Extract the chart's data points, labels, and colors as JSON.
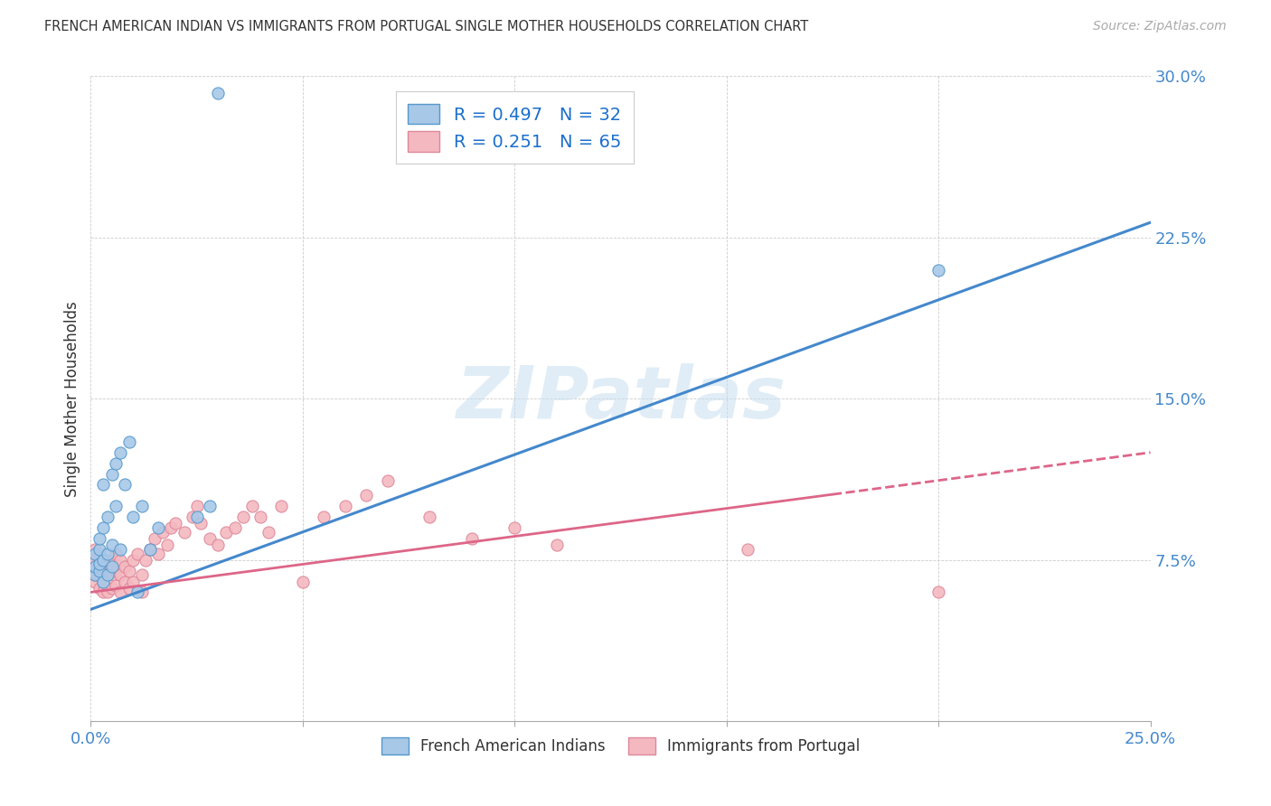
{
  "title": "FRENCH AMERICAN INDIAN VS IMMIGRANTS FROM PORTUGAL SINGLE MOTHER HOUSEHOLDS CORRELATION CHART",
  "source": "Source: ZipAtlas.com",
  "ylabel": "Single Mother Households",
  "xlim": [
    0.0,
    0.25
  ],
  "ylim": [
    0.0,
    0.3
  ],
  "xticks": [
    0.0,
    0.05,
    0.1,
    0.15,
    0.2,
    0.25
  ],
  "yticks": [
    0.0,
    0.075,
    0.15,
    0.225,
    0.3
  ],
  "blue_R": 0.497,
  "blue_N": 32,
  "pink_R": 0.251,
  "pink_N": 65,
  "blue_fill": "#a8c8e8",
  "blue_edge": "#5599cc",
  "pink_fill": "#f4b8c0",
  "pink_edge": "#dd8899",
  "blue_line_color": "#4488cc",
  "pink_line_color": "#dd6688",
  "watermark": "ZIPatlas",
  "legend_label_blue": "French American Indians",
  "legend_label_pink": "Immigrants from Portugal",
  "blue_scatter_x": [
    0.001,
    0.001,
    0.001,
    0.002,
    0.002,
    0.002,
    0.002,
    0.003,
    0.003,
    0.003,
    0.003,
    0.004,
    0.004,
    0.004,
    0.005,
    0.005,
    0.005,
    0.006,
    0.006,
    0.007,
    0.007,
    0.008,
    0.009,
    0.01,
    0.011,
    0.012,
    0.014,
    0.016,
    0.025,
    0.028,
    0.2,
    0.03
  ],
  "blue_scatter_y": [
    0.068,
    0.072,
    0.078,
    0.07,
    0.073,
    0.08,
    0.085,
    0.065,
    0.075,
    0.09,
    0.11,
    0.068,
    0.078,
    0.095,
    0.072,
    0.082,
    0.115,
    0.1,
    0.12,
    0.08,
    0.125,
    0.11,
    0.13,
    0.095,
    0.06,
    0.1,
    0.08,
    0.09,
    0.095,
    0.1,
    0.21,
    0.292
  ],
  "pink_scatter_x": [
    0.001,
    0.001,
    0.001,
    0.001,
    0.001,
    0.002,
    0.002,
    0.002,
    0.002,
    0.003,
    0.003,
    0.003,
    0.004,
    0.004,
    0.004,
    0.005,
    0.005,
    0.005,
    0.006,
    0.006,
    0.006,
    0.007,
    0.007,
    0.007,
    0.008,
    0.008,
    0.009,
    0.009,
    0.01,
    0.01,
    0.011,
    0.012,
    0.012,
    0.013,
    0.014,
    0.015,
    0.016,
    0.017,
    0.018,
    0.019,
    0.02,
    0.022,
    0.024,
    0.025,
    0.026,
    0.028,
    0.03,
    0.032,
    0.034,
    0.036,
    0.038,
    0.04,
    0.042,
    0.045,
    0.05,
    0.055,
    0.06,
    0.065,
    0.07,
    0.08,
    0.09,
    0.1,
    0.11,
    0.155,
    0.2
  ],
  "pink_scatter_y": [
    0.065,
    0.068,
    0.072,
    0.075,
    0.08,
    0.062,
    0.068,
    0.073,
    0.078,
    0.06,
    0.065,
    0.07,
    0.06,
    0.068,
    0.075,
    0.062,
    0.068,
    0.075,
    0.063,
    0.07,
    0.078,
    0.06,
    0.068,
    0.075,
    0.065,
    0.072,
    0.062,
    0.07,
    0.065,
    0.075,
    0.078,
    0.06,
    0.068,
    0.075,
    0.08,
    0.085,
    0.078,
    0.088,
    0.082,
    0.09,
    0.092,
    0.088,
    0.095,
    0.1,
    0.092,
    0.085,
    0.082,
    0.088,
    0.09,
    0.095,
    0.1,
    0.095,
    0.088,
    0.1,
    0.065,
    0.095,
    0.1,
    0.105,
    0.112,
    0.095,
    0.085,
    0.09,
    0.082,
    0.08,
    0.06
  ],
  "blue_line_x0": 0.0,
  "blue_line_y0": 0.052,
  "blue_line_x1": 0.25,
  "blue_line_y1": 0.232,
  "pink_line_x0": 0.0,
  "pink_line_y0": 0.06,
  "pink_line_x1": 0.25,
  "pink_line_y1": 0.125
}
